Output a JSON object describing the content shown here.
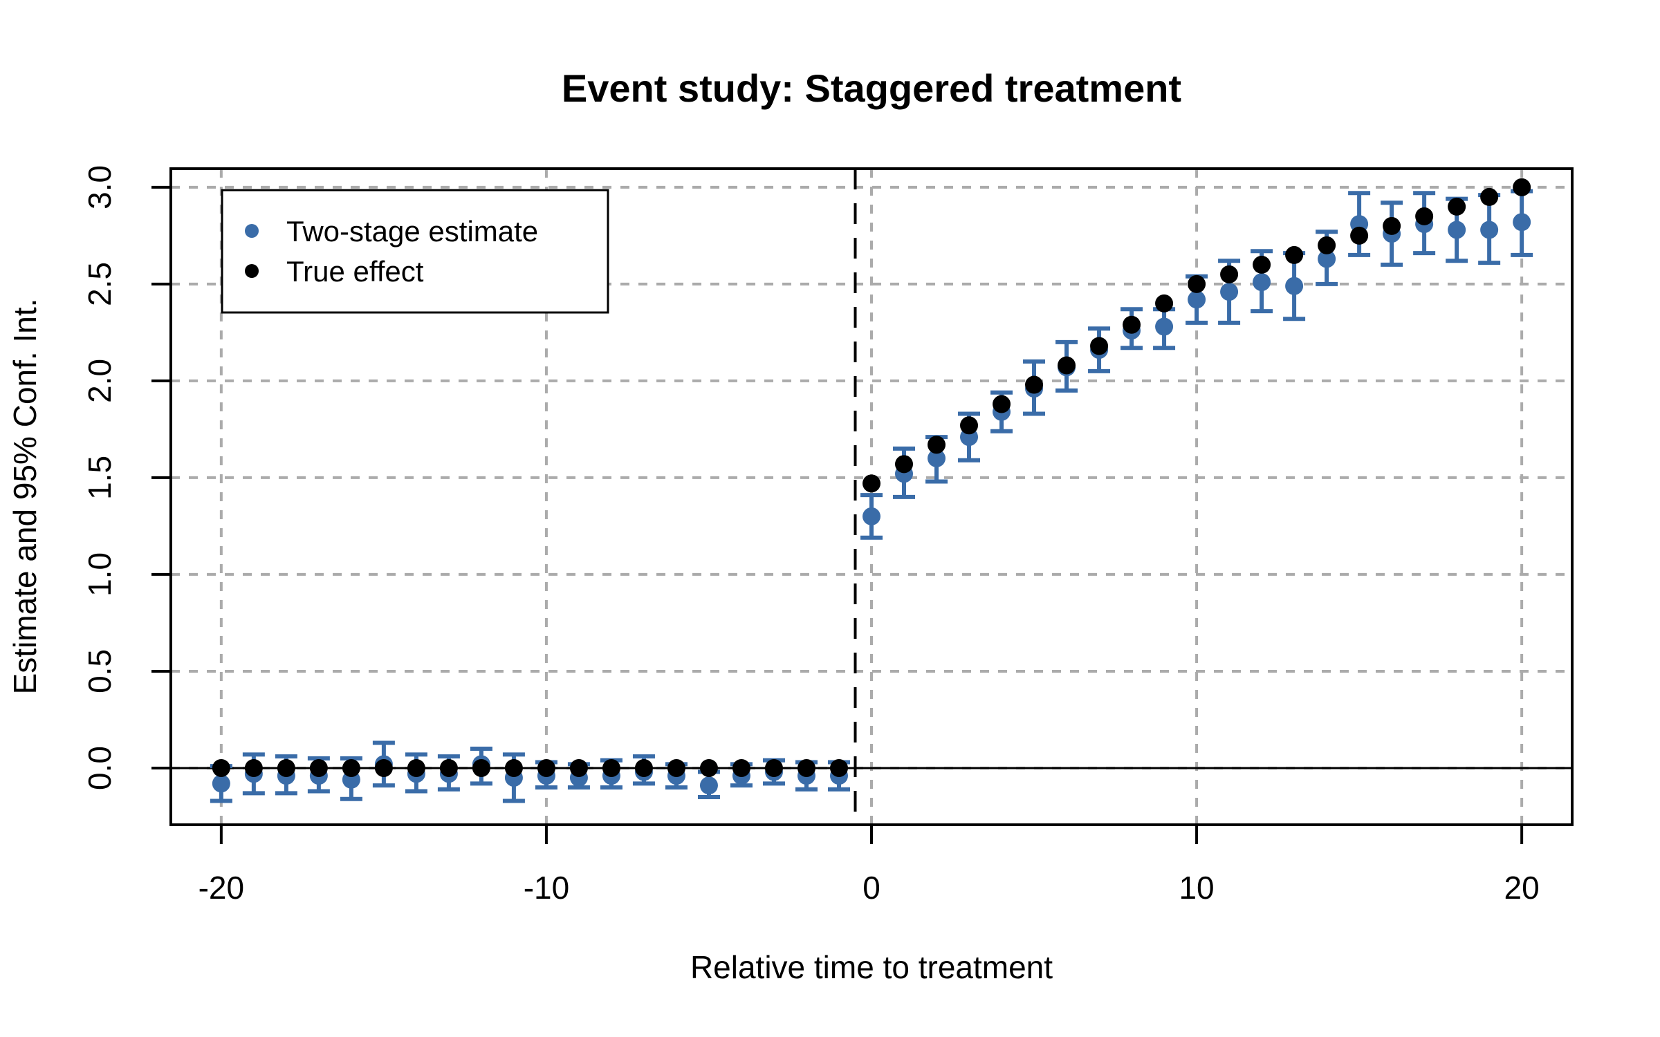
{
  "chart_data": {
    "type": "scatter",
    "title": "Event study: Staggered treatment",
    "xlabel": "Relative time to treatment",
    "ylabel": "Estimate and 95% Conf. Int.",
    "grid": true,
    "legend_position": "top-left",
    "xlim": [
      -21.55,
      21.55
    ],
    "ylim": [
      -0.293,
      3.096
    ],
    "x_ticks": [
      {
        "value": -20,
        "label": "-20"
      },
      {
        "value": -10,
        "label": "-10"
      },
      {
        "value": 0,
        "label": "0"
      },
      {
        "value": 10,
        "label": "10"
      },
      {
        "value": 20,
        "label": "20"
      }
    ],
    "y_ticks": [
      {
        "value": 0.0,
        "label": "0.0"
      },
      {
        "value": 0.5,
        "label": "0.5"
      },
      {
        "value": 1.0,
        "label": "1.0"
      },
      {
        "value": 1.5,
        "label": "1.5"
      },
      {
        "value": 2.0,
        "label": "2.0"
      },
      {
        "value": 2.5,
        "label": "2.5"
      },
      {
        "value": 3.0,
        "label": "3.0"
      }
    ],
    "reference_lines": {
      "horizontal_zero": 0,
      "vertical_treatment_dashed": -0.5
    },
    "x": [
      -20,
      -19,
      -18,
      -17,
      -16,
      -15,
      -14,
      -13,
      -12,
      -11,
      -10,
      -9,
      -8,
      -7,
      -6,
      -5,
      -4,
      -3,
      -2,
      -1,
      0,
      1,
      2,
      3,
      4,
      5,
      6,
      7,
      8,
      9,
      10,
      11,
      12,
      13,
      14,
      15,
      16,
      17,
      18,
      19,
      20
    ],
    "series": [
      {
        "name": "Two-stage estimate",
        "color": "#3A6CA8",
        "marker": "circle",
        "has_error_bars": true,
        "values": [
          -0.08,
          -0.03,
          -0.04,
          -0.04,
          -0.06,
          0.02,
          -0.03,
          -0.03,
          0.02,
          -0.05,
          -0.04,
          -0.05,
          -0.04,
          -0.02,
          -0.04,
          -0.09,
          -0.04,
          -0.02,
          -0.04,
          -0.04,
          1.3,
          1.52,
          1.6,
          1.71,
          1.84,
          1.96,
          2.07,
          2.16,
          2.26,
          2.28,
          2.42,
          2.46,
          2.51,
          2.49,
          2.63,
          2.81,
          2.76,
          2.81,
          2.78,
          2.78,
          2.82
        ],
        "ci_low": [
          -0.17,
          -0.13,
          -0.13,
          -0.12,
          -0.16,
          -0.09,
          -0.12,
          -0.11,
          -0.08,
          -0.17,
          -0.1,
          -0.1,
          -0.1,
          -0.08,
          -0.1,
          -0.15,
          -0.09,
          -0.08,
          -0.11,
          -0.11,
          1.19,
          1.4,
          1.48,
          1.59,
          1.74,
          1.83,
          1.95,
          2.05,
          2.17,
          2.17,
          2.3,
          2.3,
          2.36,
          2.32,
          2.5,
          2.65,
          2.6,
          2.66,
          2.62,
          2.61,
          2.65
        ],
        "ci_high": [
          0.01,
          0.07,
          0.06,
          0.05,
          0.05,
          0.13,
          0.07,
          0.06,
          0.1,
          0.07,
          0.03,
          0.02,
          0.04,
          0.06,
          0.02,
          -0.02,
          0.02,
          0.04,
          0.03,
          0.03,
          1.41,
          1.65,
          1.71,
          1.83,
          1.94,
          2.1,
          2.2,
          2.27,
          2.37,
          2.37,
          2.54,
          2.62,
          2.67,
          2.66,
          2.77,
          2.97,
          2.92,
          2.97,
          2.94,
          2.96,
          2.98
        ]
      },
      {
        "name": "True effect",
        "color": "#000000",
        "marker": "circle",
        "has_error_bars": false,
        "values": [
          0,
          0,
          0,
          0,
          0,
          0,
          0,
          0,
          0,
          0,
          0,
          0,
          0,
          0,
          0,
          0,
          0,
          0,
          0,
          0,
          1.47,
          1.57,
          1.67,
          1.77,
          1.88,
          1.98,
          2.08,
          2.18,
          2.29,
          2.4,
          2.5,
          2.55,
          2.6,
          2.65,
          2.7,
          2.75,
          2.8,
          2.85,
          2.9,
          2.95,
          3.0
        ]
      }
    ],
    "colors": {
      "estimate_blue": "#3A6CA8",
      "true_effect_black": "#000000",
      "gridline_gray": "#ABABAB",
      "axis_black": "#000000",
      "background": "#FFFFFF"
    }
  }
}
